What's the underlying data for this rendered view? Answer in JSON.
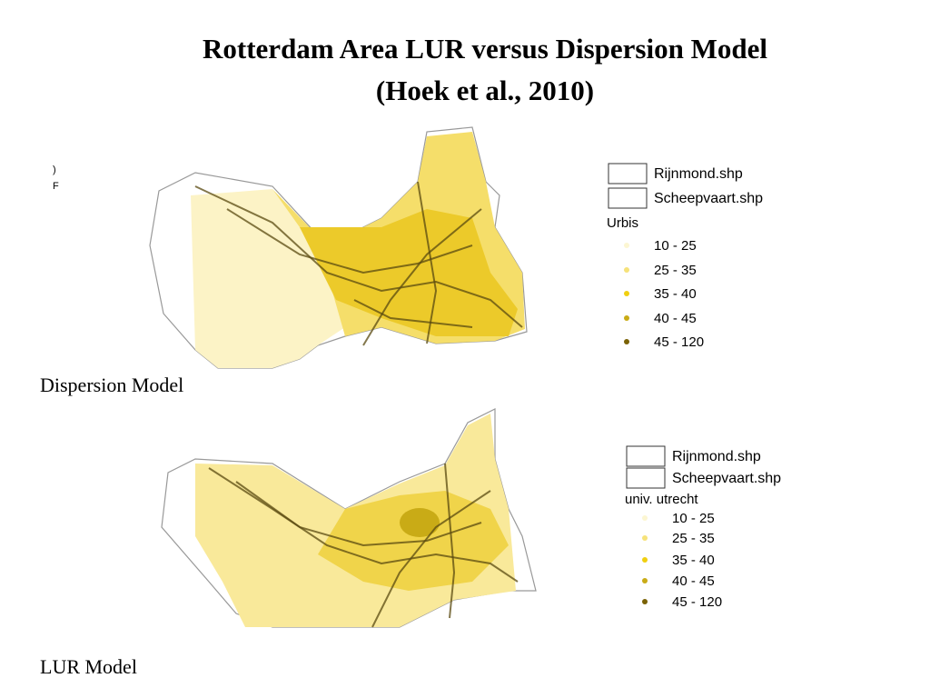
{
  "title": [
    "Rotterdam Area LUR versus Dispersion Model",
    "(Hoek et al., 2010)"
  ],
  "fragments": [
    ")",
    "F"
  ],
  "maps": [
    {
      "caption": "Dispersion Model",
      "legend": {
        "layers": [
          "Rijnmond.shp",
          "Scheepvaart.shp"
        ],
        "group": "Urbis",
        "classes": [
          {
            "label": "10 - 25",
            "color": "#fcf6d2"
          },
          {
            "label": "25 - 35",
            "color": "#f6e27a"
          },
          {
            "label": "35 - 40",
            "color": "#f0cf10"
          },
          {
            "label": "40 - 45",
            "color": "#c9ab16"
          },
          {
            "label": "45 - 120",
            "color": "#7a6206"
          }
        ]
      }
    },
    {
      "caption": "LUR Model",
      "legend": {
        "layers": [
          "Rijnmond.shp",
          "Scheepvaart.shp"
        ],
        "group": "univ. utrecht",
        "classes": [
          {
            "label": "10 - 25",
            "color": "#fcf6d2"
          },
          {
            "label": "25 - 35",
            "color": "#f6e27a"
          },
          {
            "label": "35 - 40",
            "color": "#f0cf10"
          },
          {
            "label": "40 - 45",
            "color": "#c9ab16"
          },
          {
            "label": "45 - 120",
            "color": "#7a6206"
          }
        ]
      }
    }
  ]
}
